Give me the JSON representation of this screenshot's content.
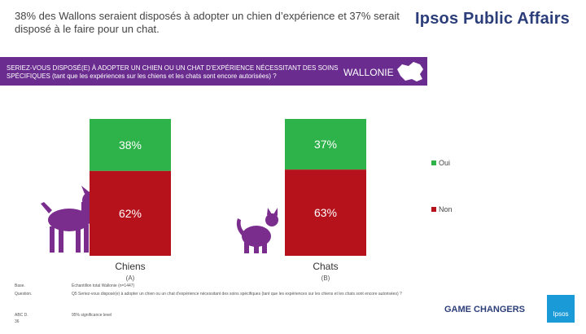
{
  "header": {
    "headline": "38% des Wallons seraient disposés à adopter un chien d’expérience et 37% serait disposé à le faire pour un chat.",
    "brand": "Ipsos Public Affairs"
  },
  "banner": {
    "question": "SERIEZ-VOUS DISPOSÉ(E) À ADOPTER UN CHIEN OU UN CHAT D’EXPÉRIENCE NÉCESSITANT DES SOINS SPÉCIFIQUES (tant que les expériences sur les chiens et les chats sont encore autorisées) ?",
    "region": "WALLONIE"
  },
  "chart_data": {
    "type": "bar",
    "stacked": true,
    "percent": true,
    "categories": [
      "Chiens",
      "Chats"
    ],
    "category_codes": [
      "(A)",
      "(B)"
    ],
    "series": [
      {
        "name": "Oui",
        "color": "#2db34a",
        "values": [
          38,
          37
        ]
      },
      {
        "name": "Non",
        "color": "#b5121b",
        "values": [
          62,
          63
        ]
      }
    ],
    "value_labels": [
      [
        "38%",
        "62%"
      ],
      [
        "37%",
        "63%"
      ]
    ],
    "legend_position": "right"
  },
  "footer": {
    "base_label": "Base.",
    "base_text": "Échantillon total Wallonie (n=1447)",
    "question_label": "Question.",
    "question_text": "Q5 Seriez-vous disposé(e) à adopter un chien ou un chat d’expérience nécessitant des soins spécifiques (tant que les expériences sur les chiens et les chats sont encore autorisées) ?",
    "abc_label": "ABC D.",
    "abc_text": "95% significance level",
    "page": "36",
    "tagline": "GAME CHANGERS",
    "logo": "Ipsos"
  }
}
